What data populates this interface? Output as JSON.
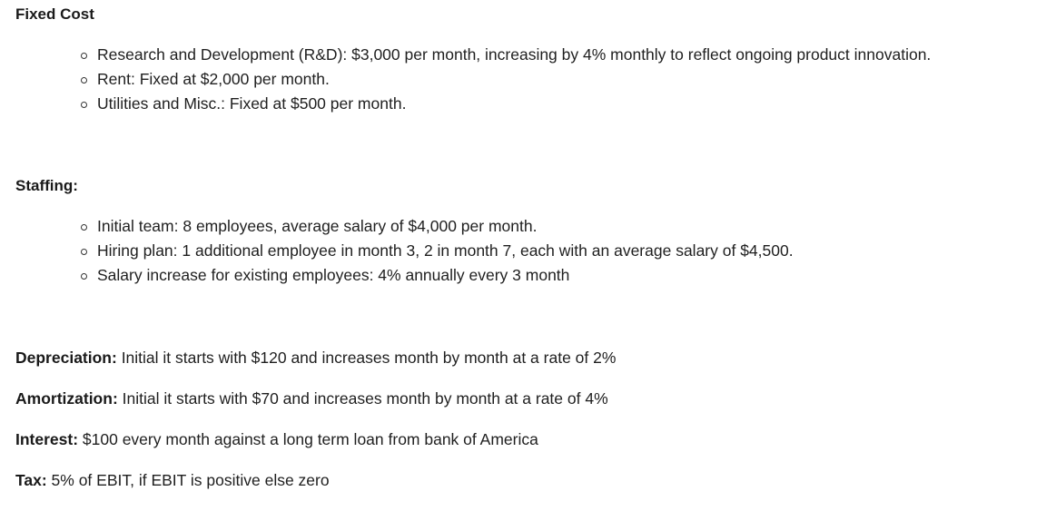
{
  "fixed_cost": {
    "heading": "Fixed Cost",
    "items": [
      "Research and Development (R&D): $3,000 per month, increasing by 4% monthly to reflect ongoing product innovation.",
      "Rent: Fixed at $2,000 per month.",
      "Utilities and Misc.: Fixed at $500 per month."
    ]
  },
  "staffing": {
    "heading": "Staffing:",
    "items": [
      "Initial team: 8 employees, average salary of $4,000 per month.",
      "Hiring plan: 1 additional employee in month 3, 2 in month 7, each with an average salary of $4,500.",
      "Salary increase for existing employees: 4% annually every 3 month"
    ]
  },
  "depreciation": {
    "label": "Depreciation:",
    "text": " Initial it starts with $120 and increases month by month at a rate of 2%"
  },
  "amortization": {
    "label": "Amortization:",
    "text": " Initial it starts with $70 and increases month by month at a rate of 4%"
  },
  "interest": {
    "label": "Interest:",
    "text": " $100 every month against a long term loan from bank of America"
  },
  "tax": {
    "label": "Tax:",
    "text": " 5% of EBIT, if EBIT is positive else zero"
  }
}
